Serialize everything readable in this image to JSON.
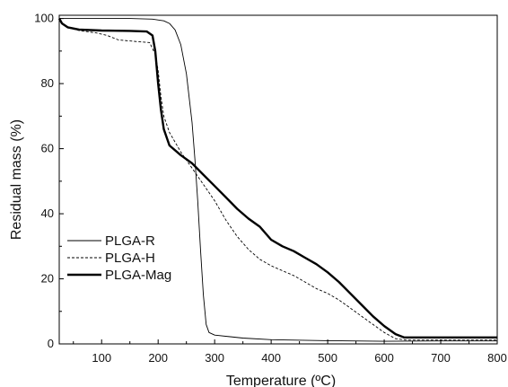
{
  "chart_data": {
    "type": "line",
    "xlabel": "Temperature (ºC)",
    "ylabel": "Residual mass (%)",
    "xlim": [
      25,
      800
    ],
    "ylim": [
      0,
      101
    ],
    "x_ticks": [
      "100",
      "200",
      "300",
      "400",
      "500",
      "600",
      "700",
      "800"
    ],
    "y_ticks": [
      "0",
      "20",
      "40",
      "60",
      "80",
      "100"
    ],
    "legend_position": "left",
    "series": [
      {
        "name": "PLGA-R",
        "style": "thin",
        "points": [
          [
            25,
            100
          ],
          [
            40,
            100
          ],
          [
            100,
            100
          ],
          [
            150,
            100
          ],
          [
            190,
            99.8
          ],
          [
            210,
            99.3
          ],
          [
            220,
            98.5
          ],
          [
            230,
            96.5
          ],
          [
            240,
            92
          ],
          [
            250,
            83
          ],
          [
            260,
            68
          ],
          [
            265,
            57
          ],
          [
            270,
            44
          ],
          [
            275,
            29
          ],
          [
            280,
            15
          ],
          [
            285,
            6
          ],
          [
            290,
            3.5
          ],
          [
            300,
            2.7
          ],
          [
            350,
            1.8
          ],
          [
            400,
            1.3
          ],
          [
            500,
            1.0
          ],
          [
            600,
            0.8
          ],
          [
            700,
            0.9
          ],
          [
            800,
            0.9
          ]
        ]
      },
      {
        "name": "PLGA-H",
        "style": "dashed",
        "points": [
          [
            25,
            100
          ],
          [
            30,
            98.5
          ],
          [
            40,
            97.2
          ],
          [
            60,
            96.3
          ],
          [
            90,
            95.6
          ],
          [
            110,
            94.8
          ],
          [
            130,
            93.4
          ],
          [
            150,
            93.1
          ],
          [
            170,
            92.8
          ],
          [
            185,
            92.6
          ],
          [
            195,
            89
          ],
          [
            200,
            84
          ],
          [
            205,
            76
          ],
          [
            210,
            70
          ],
          [
            220,
            65
          ],
          [
            240,
            59
          ],
          [
            260,
            54
          ],
          [
            280,
            49
          ],
          [
            300,
            44
          ],
          [
            320,
            38
          ],
          [
            340,
            33
          ],
          [
            360,
            29
          ],
          [
            380,
            26
          ],
          [
            400,
            24
          ],
          [
            420,
            22.5
          ],
          [
            440,
            21
          ],
          [
            460,
            19
          ],
          [
            480,
            17
          ],
          [
            500,
            15.5
          ],
          [
            520,
            13.5
          ],
          [
            540,
            11
          ],
          [
            560,
            8.5
          ],
          [
            580,
            6
          ],
          [
            600,
            3.5
          ],
          [
            620,
            1.6
          ],
          [
            640,
            1.2
          ],
          [
            700,
            1.2
          ],
          [
            800,
            1.2
          ]
        ]
      },
      {
        "name": "PLGA-Mag",
        "style": "thick",
        "points": [
          [
            25,
            100
          ],
          [
            30,
            98.5
          ],
          [
            40,
            97.3
          ],
          [
            60,
            96.6
          ],
          [
            100,
            96.3
          ],
          [
            150,
            96.2
          ],
          [
            180,
            96
          ],
          [
            190,
            94.8
          ],
          [
            195,
            90
          ],
          [
            200,
            80
          ],
          [
            205,
            72
          ],
          [
            210,
            66
          ],
          [
            220,
            61
          ],
          [
            240,
            58
          ],
          [
            260,
            55.5
          ],
          [
            280,
            52
          ],
          [
            300,
            48.5
          ],
          [
            320,
            45
          ],
          [
            340,
            41.5
          ],
          [
            360,
            38.5
          ],
          [
            380,
            36
          ],
          [
            400,
            32
          ],
          [
            420,
            30
          ],
          [
            440,
            28.5
          ],
          [
            460,
            26.5
          ],
          [
            480,
            24.5
          ],
          [
            500,
            22
          ],
          [
            520,
            19
          ],
          [
            540,
            15.5
          ],
          [
            560,
            12
          ],
          [
            580,
            8.5
          ],
          [
            600,
            5.5
          ],
          [
            620,
            3
          ],
          [
            635,
            2
          ],
          [
            650,
            2
          ],
          [
            700,
            2
          ],
          [
            800,
            2
          ]
        ]
      }
    ]
  }
}
